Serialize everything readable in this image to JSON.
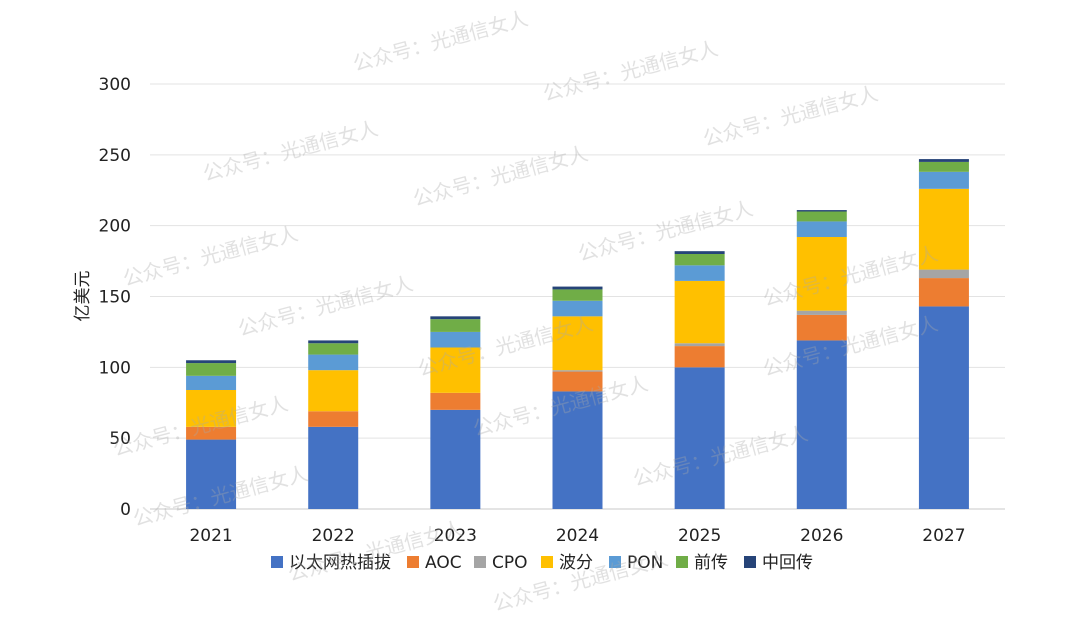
{
  "watermark": "公众号：光通信女人",
  "chart_data": {
    "type": "bar",
    "stacked": true,
    "ylabel": "亿美元",
    "xlabel": "",
    "title": "",
    "ylim": [
      0,
      300
    ],
    "yticks": [
      0,
      50,
      100,
      150,
      200,
      250,
      300
    ],
    "grid": true,
    "legend_position": "bottom",
    "categories": [
      "2021",
      "2022",
      "2023",
      "2024",
      "2025",
      "2026",
      "2027"
    ],
    "series": [
      {
        "name": "以太网热插拔",
        "color": "#4472C4",
        "values": [
          49,
          58,
          70,
          83,
          100,
          119,
          143
        ]
      },
      {
        "name": "AOC",
        "color": "#ED7D31",
        "values": [
          9,
          11,
          12,
          14,
          15,
          18,
          20
        ]
      },
      {
        "name": "CPO",
        "color": "#A5A5A5",
        "values": [
          0,
          0,
          0,
          1,
          2,
          3,
          6
        ]
      },
      {
        "name": "波分",
        "color": "#FFC000",
        "values": [
          26,
          29,
          32,
          38,
          44,
          52,
          57
        ]
      },
      {
        "name": "PON",
        "color": "#5B9BD5",
        "values": [
          10,
          11,
          11,
          11,
          11,
          11,
          12
        ]
      },
      {
        "name": "前传",
        "color": "#70AD47",
        "values": [
          9,
          8,
          9,
          8,
          8,
          7,
          7
        ]
      },
      {
        "name": "中回传",
        "color": "#264478",
        "values": [
          2,
          2,
          2,
          2,
          2,
          1,
          2
        ]
      }
    ]
  }
}
